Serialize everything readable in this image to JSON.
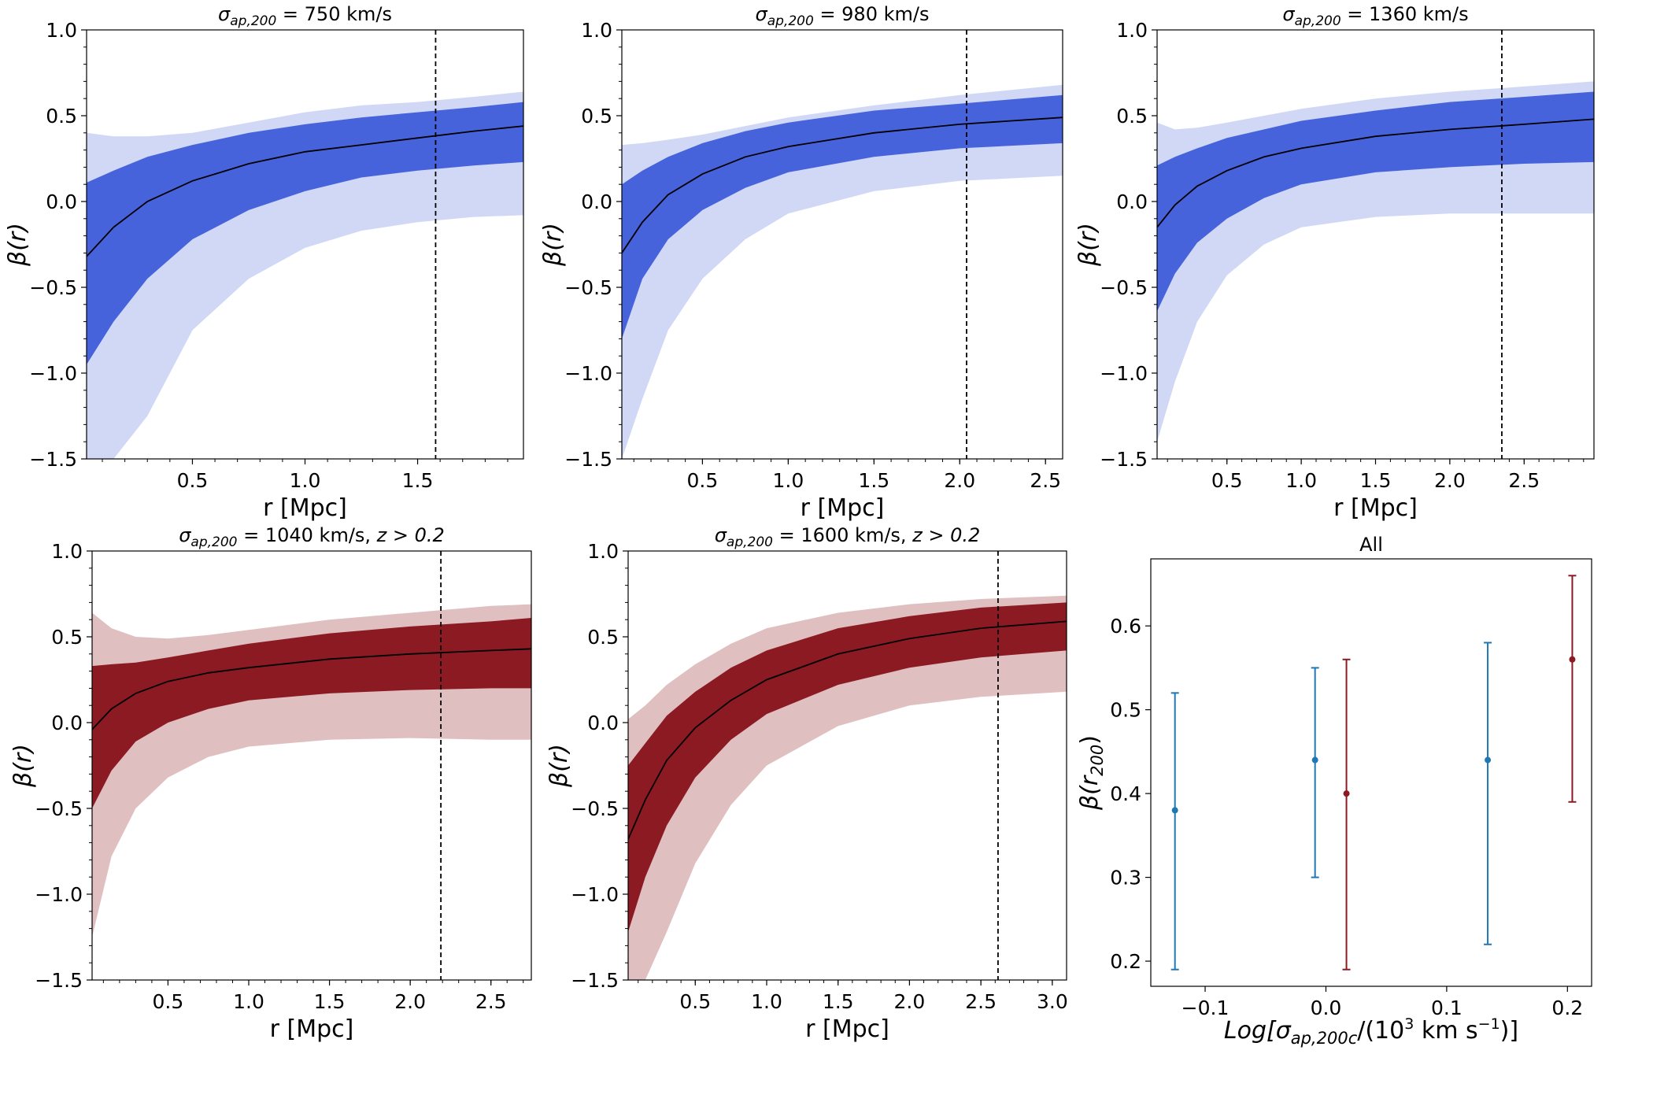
{
  "chart_data": [
    {
      "type": "line",
      "title_sym": "σ",
      "title_sub": "ap,200",
      "title_rest": " = 750 km/s",
      "xlabel": "r [Mpc]",
      "ylabel": "β(r)",
      "xlim": [
        0.03,
        1.97
      ],
      "ylim": [
        -1.5,
        1.0
      ],
      "xticks": [
        0.5,
        1.0,
        1.5
      ],
      "yticks": [
        -1.5,
        -1.0,
        -0.5,
        0.0,
        0.5,
        1.0
      ],
      "r200": 1.58,
      "color_dark": "#4763dc",
      "color_light": "#d0d8f6",
      "x": [
        0.03,
        0.15,
        0.3,
        0.5,
        0.75,
        1.0,
        1.25,
        1.5,
        1.75,
        1.97
      ],
      "median": [
        -0.32,
        -0.15,
        0.0,
        0.12,
        0.22,
        0.29,
        0.33,
        0.37,
        0.41,
        0.44
      ],
      "inner_upper": [
        0.11,
        0.18,
        0.26,
        0.33,
        0.4,
        0.45,
        0.49,
        0.52,
        0.55,
        0.58
      ],
      "inner_lower": [
        -0.95,
        -0.7,
        -0.45,
        -0.22,
        -0.05,
        0.06,
        0.14,
        0.18,
        0.21,
        0.23
      ],
      "outer_upper": [
        0.4,
        0.38,
        0.38,
        0.4,
        0.46,
        0.52,
        0.56,
        0.58,
        0.61,
        0.64
      ],
      "outer_lower": [
        -1.5,
        -1.5,
        -1.25,
        -0.75,
        -0.45,
        -0.27,
        -0.17,
        -0.12,
        -0.09,
        -0.08
      ]
    },
    {
      "type": "line",
      "title_sym": "σ",
      "title_sub": "ap,200",
      "title_rest": " = 980 km/s",
      "xlabel": "r [Mpc]",
      "ylabel": "β(r)",
      "xlim": [
        0.03,
        2.6
      ],
      "ylim": [
        -1.5,
        1.0
      ],
      "xticks": [
        0.5,
        1.0,
        1.5,
        2.0,
        2.5
      ],
      "yticks": [
        -1.5,
        -1.0,
        -0.5,
        0.0,
        0.5,
        1.0
      ],
      "r200": 2.04,
      "color_dark": "#4763dc",
      "color_light": "#d0d8f6",
      "x": [
        0.03,
        0.15,
        0.3,
        0.5,
        0.75,
        1.0,
        1.5,
        2.0,
        2.6
      ],
      "median": [
        -0.3,
        -0.12,
        0.04,
        0.16,
        0.26,
        0.32,
        0.4,
        0.45,
        0.49
      ],
      "inner_upper": [
        0.1,
        0.18,
        0.26,
        0.34,
        0.41,
        0.46,
        0.53,
        0.57,
        0.62
      ],
      "inner_lower": [
        -0.8,
        -0.45,
        -0.22,
        -0.05,
        0.08,
        0.17,
        0.26,
        0.31,
        0.34
      ],
      "outer_upper": [
        0.33,
        0.34,
        0.36,
        0.39,
        0.44,
        0.49,
        0.56,
        0.62,
        0.68
      ],
      "outer_lower": [
        -1.5,
        -1.15,
        -0.75,
        -0.45,
        -0.22,
        -0.07,
        0.06,
        0.12,
        0.15
      ]
    },
    {
      "type": "line",
      "title_sym": "σ",
      "title_sub": "ap,200",
      "title_rest": " = 1360 km/s",
      "xlabel": "r [Mpc]",
      "ylabel": "β(r)",
      "xlim": [
        0.03,
        2.97
      ],
      "ylim": [
        -1.5,
        1.0
      ],
      "xticks": [
        0.5,
        1.0,
        1.5,
        2.0,
        2.5
      ],
      "yticks": [
        -1.5,
        -1.0,
        -0.5,
        0.0,
        0.5,
        1.0
      ],
      "r200": 2.35,
      "color_dark": "#4763dc",
      "color_light": "#d0d8f6",
      "x": [
        0.03,
        0.15,
        0.3,
        0.5,
        0.75,
        1.0,
        1.5,
        2.0,
        2.5,
        2.97
      ],
      "median": [
        -0.15,
        -0.02,
        0.09,
        0.18,
        0.26,
        0.31,
        0.38,
        0.42,
        0.45,
        0.48
      ],
      "inner_upper": [
        0.21,
        0.26,
        0.31,
        0.37,
        0.42,
        0.47,
        0.53,
        0.58,
        0.61,
        0.64
      ],
      "inner_lower": [
        -0.64,
        -0.42,
        -0.24,
        -0.1,
        0.02,
        0.1,
        0.17,
        0.2,
        0.22,
        0.23
      ],
      "outer_upper": [
        0.46,
        0.42,
        0.43,
        0.46,
        0.5,
        0.54,
        0.6,
        0.64,
        0.67,
        0.7
      ],
      "outer_lower": [
        -1.4,
        -1.05,
        -0.7,
        -0.43,
        -0.25,
        -0.15,
        -0.09,
        -0.07,
        -0.07,
        -0.07
      ]
    },
    {
      "type": "line",
      "title_sym": "σ",
      "title_sub": "ap,200",
      "title_rest": " = 1040 km/s, ",
      "title_z": "z > 0.2",
      "xlabel": "r [Mpc]",
      "ylabel": "β(r)",
      "xlim": [
        0.03,
        2.75
      ],
      "ylim": [
        -1.5,
        1.0
      ],
      "xticks": [
        0.5,
        1.0,
        1.5,
        2.0,
        2.5
      ],
      "yticks": [
        -1.5,
        -1.0,
        -0.5,
        0.0,
        0.5,
        1.0
      ],
      "r200": 2.19,
      "color_dark": "#8b1a22",
      "color_light": "#e0bfc1",
      "x": [
        0.03,
        0.15,
        0.3,
        0.5,
        0.75,
        1.0,
        1.5,
        2.0,
        2.5,
        2.75
      ],
      "median": [
        -0.04,
        0.08,
        0.17,
        0.24,
        0.29,
        0.32,
        0.37,
        0.4,
        0.42,
        0.43
      ],
      "inner_upper": [
        0.33,
        0.34,
        0.35,
        0.38,
        0.42,
        0.46,
        0.52,
        0.56,
        0.59,
        0.61
      ],
      "inner_lower": [
        -0.5,
        -0.28,
        -0.11,
        0.0,
        0.08,
        0.13,
        0.17,
        0.19,
        0.2,
        0.2
      ],
      "outer_upper": [
        0.64,
        0.55,
        0.5,
        0.49,
        0.51,
        0.54,
        0.6,
        0.64,
        0.68,
        0.69
      ],
      "outer_lower": [
        -1.25,
        -0.78,
        -0.5,
        -0.32,
        -0.2,
        -0.14,
        -0.1,
        -0.09,
        -0.1,
        -0.1
      ]
    },
    {
      "type": "line",
      "title_sym": "σ",
      "title_sub": "ap,200",
      "title_rest": " = 1600 km/s, ",
      "title_z": "z > 0.2",
      "xlabel": "r [Mpc]",
      "ylabel": "β(r)",
      "xlim": [
        0.03,
        3.1
      ],
      "ylim": [
        -1.5,
        1.0
      ],
      "xticks": [
        0.5,
        1.0,
        1.5,
        2.0,
        2.5,
        3.0
      ],
      "yticks": [
        -1.5,
        -1.0,
        -0.5,
        0.0,
        0.5,
        1.0
      ],
      "r200": 2.62,
      "color_dark": "#8b1a22",
      "color_light": "#e0bfc1",
      "x": [
        0.03,
        0.15,
        0.3,
        0.5,
        0.75,
        1.0,
        1.5,
        2.0,
        2.5,
        3.1
      ],
      "median": [
        -0.68,
        -0.45,
        -0.22,
        -0.03,
        0.13,
        0.25,
        0.4,
        0.49,
        0.55,
        0.59
      ],
      "inner_upper": [
        -0.25,
        -0.12,
        0.04,
        0.18,
        0.32,
        0.42,
        0.55,
        0.62,
        0.67,
        0.7
      ],
      "inner_lower": [
        -1.22,
        -0.9,
        -0.6,
        -0.32,
        -0.1,
        0.05,
        0.22,
        0.32,
        0.38,
        0.42
      ],
      "outer_upper": [
        0.02,
        0.1,
        0.22,
        0.34,
        0.46,
        0.55,
        0.64,
        0.69,
        0.72,
        0.74
      ],
      "outer_lower": [
        -1.5,
        -1.5,
        -1.22,
        -0.82,
        -0.48,
        -0.25,
        -0.02,
        0.1,
        0.15,
        0.18
      ]
    },
    {
      "type": "errorbar",
      "title": "All",
      "xlabel": "Log[σap,200c/(10³ km s⁻¹)]",
      "xlabel_main": "Log[σ",
      "xlabel_sub": "ap,200c",
      "xlabel_tail": "/(10",
      "xlabel_sup1": "3",
      "xlabel_mid": " km s",
      "xlabel_sup2": "−1",
      "xlabel_end": ")]",
      "ylabel": "β(r200)",
      "ylabel_main": "β(r",
      "ylabel_sub": "200",
      "ylabel_end": ")",
      "xlim": [
        -0.145,
        0.22
      ],
      "ylim": [
        0.17,
        0.68
      ],
      "xticks": [
        -0.1,
        0.0,
        0.1,
        0.2
      ],
      "yticks": [
        0.2,
        0.3,
        0.4,
        0.5,
        0.6
      ],
      "points": [
        {
          "x": -0.125,
          "y": 0.38,
          "lo": 0.19,
          "hi": 0.52,
          "color": "#1f77b4"
        },
        {
          "x": -0.009,
          "y": 0.44,
          "lo": 0.3,
          "hi": 0.55,
          "color": "#1f77b4"
        },
        {
          "x": 0.017,
          "y": 0.4,
          "lo": 0.19,
          "hi": 0.56,
          "color": "#8b1a22"
        },
        {
          "x": 0.134,
          "y": 0.44,
          "lo": 0.22,
          "hi": 0.58,
          "color": "#1f77b4"
        },
        {
          "x": 0.204,
          "y": 0.56,
          "lo": 0.39,
          "hi": 0.66,
          "color": "#8b1a22"
        }
      ]
    }
  ]
}
